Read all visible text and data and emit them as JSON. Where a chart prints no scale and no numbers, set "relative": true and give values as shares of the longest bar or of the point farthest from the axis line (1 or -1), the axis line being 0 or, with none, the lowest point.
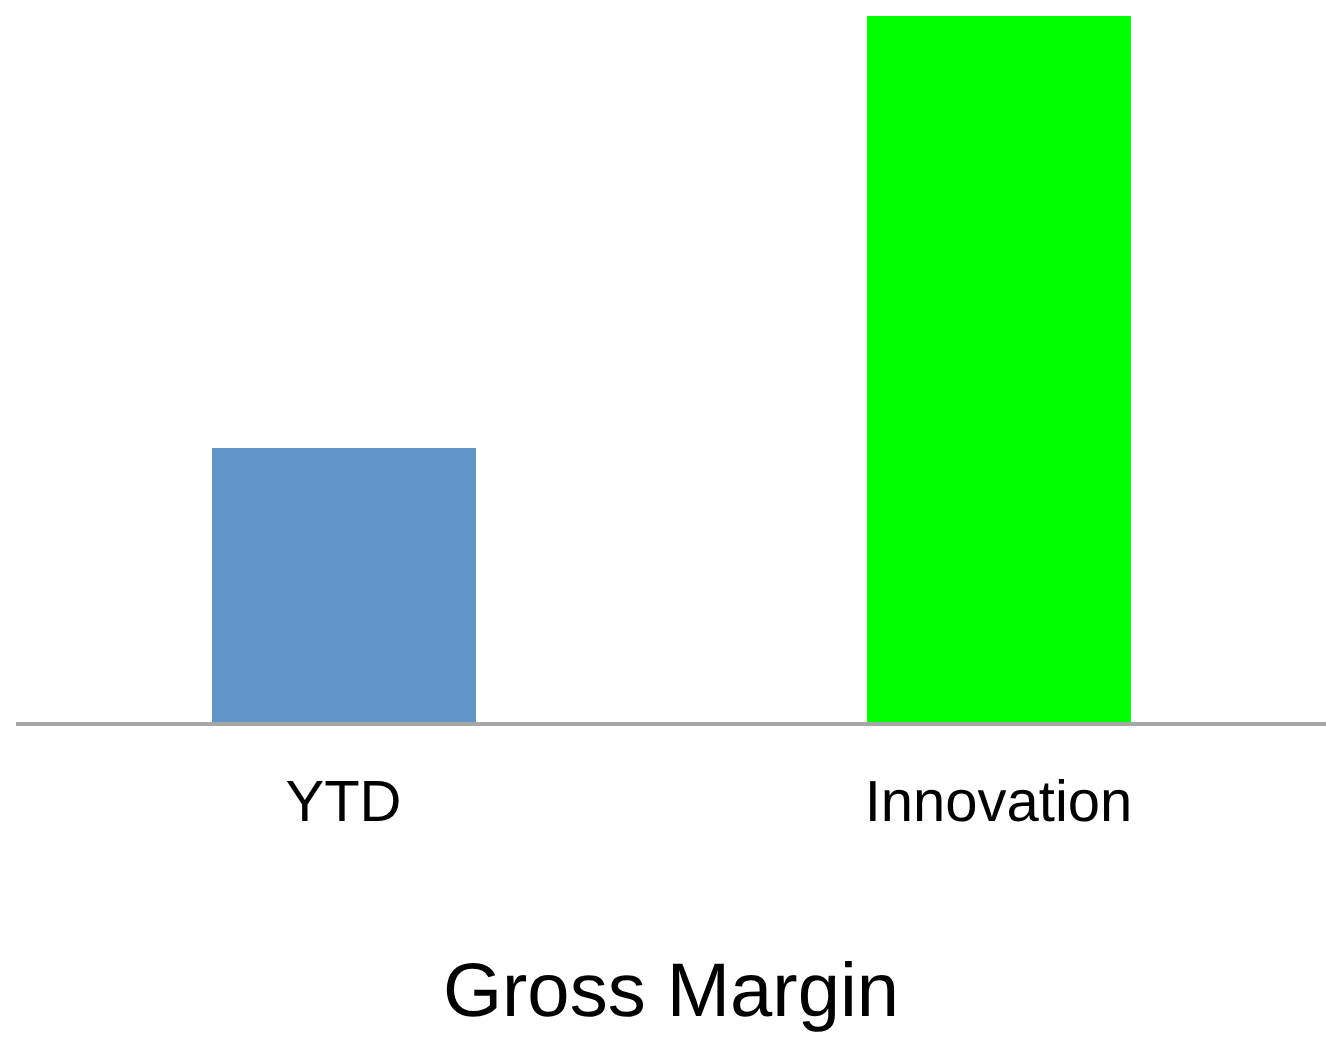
{
  "chart_data": {
    "type": "bar",
    "relative": true,
    "xlabel": "Gross Margin",
    "categories": [
      "YTD",
      "Innovation"
    ],
    "values": [
      0.39,
      1
    ],
    "colors": [
      "#6396c8",
      "#00ff00"
    ]
  }
}
